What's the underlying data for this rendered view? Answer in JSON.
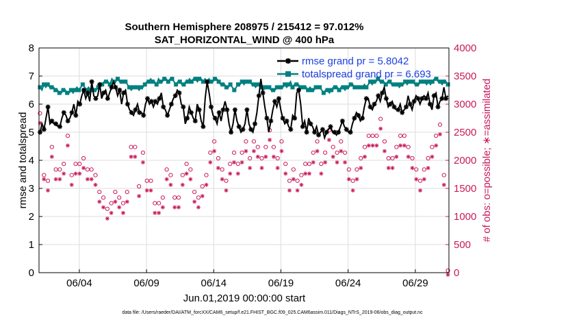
{
  "chart_data": {
    "type": "line",
    "title_line1": "Southern Hemisphere 208975 / 215412 = 97.012%",
    "title_line2": "SAT_HORIZONTAL_WIND @ 400 hPa",
    "xlabel": "Jun.01,2019 00:00:00 start",
    "ylabel_left": "rmse and totalspread",
    "ylabel_right": "# of obs: o=possible; ∗=assimilated",
    "xlim": [
      0,
      30.5
    ],
    "ylim_left": [
      0,
      8
    ],
    "ylim_right": [
      0,
      4000
    ],
    "x_ticks": [
      {
        "x": 3,
        "label": "06/04"
      },
      {
        "x": 8,
        "label": "06/09"
      },
      {
        "x": 13,
        "label": "06/14"
      },
      {
        "x": 18,
        "label": "06/19"
      },
      {
        "x": 23,
        "label": "06/24"
      },
      {
        "x": 28,
        "label": "06/29"
      }
    ],
    "y_ticks_left": [
      0,
      1,
      2,
      3,
      4,
      5,
      6,
      7,
      8
    ],
    "y_ticks_right": [
      0,
      500,
      1000,
      1500,
      2000,
      2500,
      3000,
      3500,
      4000
    ],
    "grid": true,
    "legend_position": "top-right",
    "colors": {
      "rmse": "#000000",
      "spread": "#008080",
      "obs": "#c8185a",
      "legend_text": "#1a3fe0"
    },
    "footer": "data file: /Users/raeder/DAI/ATM_forcXX/CAM6_setup/f.e21.FHIST_BGC.f09_025.CAM6assim.011/Diags_NTrS_2019-06/obs_diag_output.nc",
    "series": [
      {
        "name": "rmse grand pr = 5.8042",
        "axis": "left",
        "values": [
          5.0,
          5.3,
          5.1,
          5.5,
          5.9,
          5.3,
          5.4,
          5.3,
          5.3,
          5.2,
          5.2,
          5.5,
          5.7,
          5.6,
          5.4,
          5.5,
          5.7,
          6.0,
          5.6,
          6.1,
          6.0,
          6.3,
          6.5,
          6.2,
          6.4,
          6.1,
          6.8,
          6.3,
          6.2,
          6.3,
          6.7,
          6.2,
          6.4,
          6.5,
          6.2,
          6.4,
          6.6,
          6.8,
          6.6,
          6.3,
          6.5,
          6.0,
          6.4,
          6.5,
          6.0,
          5.8,
          5.7,
          5.6,
          5.8,
          6.0,
          5.7,
          5.7,
          5.6,
          6.0,
          6.2,
          6.0,
          6.1,
          5.9,
          6.1,
          6.0,
          6.2,
          6.4,
          5.9,
          5.8,
          5.6,
          5.8,
          6.0,
          6.2,
          6.3,
          6.5,
          6.4,
          6.0,
          5.9,
          5.3,
          5.5,
          5.9,
          5.7,
          5.5,
          5.4,
          6.0,
          5.8,
          5.4,
          5.2,
          6.2,
          6.8,
          6.4,
          5.9,
          5.6,
          5.5,
          5.3,
          5.7,
          5.4,
          5.8,
          6.1,
          5.8,
          5.3,
          5.0,
          5.3,
          5.8,
          5.4,
          5.2,
          5.0,
          5.1,
          5.3,
          5.8,
          5.3,
          5.1,
          5.0,
          5.3,
          5.7,
          6.3,
          6.9,
          6.4,
          5.9,
          5.5,
          5.0,
          5.4,
          5.8,
          6.1,
          5.9,
          6.2,
          5.8,
          5.5,
          5.3,
          5.4,
          5.2,
          5.1,
          5.6,
          5.5,
          6.4,
          6.5,
          6.0,
          5.2,
          5.4,
          5.0,
          5.5,
          5.3,
          5.2,
          5.0,
          5.2,
          4.9,
          5.0,
          5.1,
          4.8,
          5.0,
          5.1,
          5.2,
          5.0,
          5.0,
          4.9,
          5.0,
          5.2,
          5.4,
          5.2,
          5.1,
          5.0,
          5.0,
          5.3,
          5.5,
          5.7,
          5.6,
          5.4,
          5.5,
          5.9,
          6.2,
          6.2,
          5.9,
          5.8,
          6.0,
          6.1,
          6.3,
          6.1,
          6.4,
          6.6,
          6.2,
          5.9,
          6.0,
          6.1,
          5.9,
          5.8,
          5.8,
          6.0,
          5.7,
          5.8,
          5.9,
          6.3,
          6.0,
          5.8,
          6.1,
          6.3,
          6.2,
          6.0,
          6.2,
          6.3,
          6.2,
          6.4,
          6.0,
          5.8,
          6.3,
          6.4,
          5.9,
          6.1,
          6.2,
          6.6,
          6.2,
          6.3
        ]
      },
      {
        "name": "totalspread grand pr = 6.693",
        "axis": "left",
        "values": [
          6.6,
          6.5,
          6.7,
          6.6,
          6.7,
          6.6,
          6.6,
          6.6,
          6.5,
          6.5,
          6.4,
          6.4,
          6.5,
          6.5,
          6.4,
          6.4,
          6.5,
          6.4,
          6.5,
          6.6,
          6.5,
          6.6,
          6.7,
          6.6,
          6.5,
          6.6,
          6.5,
          6.6,
          6.5,
          6.5,
          6.6,
          6.6,
          6.7,
          6.8,
          6.8,
          6.8,
          6.7,
          6.9,
          6.8,
          6.8,
          6.9,
          6.8,
          6.8,
          6.8,
          6.8,
          6.7,
          6.6,
          6.5,
          6.6,
          6.6,
          6.6,
          6.5,
          6.6,
          6.6,
          6.7,
          6.8,
          6.8,
          6.9,
          6.8,
          6.8,
          6.7,
          6.9,
          6.8,
          6.8,
          6.9,
          6.9,
          6.8,
          6.9,
          6.9,
          6.8,
          6.7,
          6.8,
          6.8,
          6.7,
          6.7,
          6.8,
          6.8,
          6.9,
          6.8,
          6.9,
          6.9,
          6.8,
          6.9,
          6.9,
          6.8,
          6.9,
          6.8,
          6.9,
          6.8,
          6.8,
          6.9,
          6.9,
          6.8,
          6.7,
          6.7,
          6.7,
          6.6,
          6.6,
          6.7,
          6.6,
          6.5,
          6.6,
          6.7,
          6.7,
          6.8,
          6.7,
          6.8,
          6.8,
          6.8,
          6.7,
          6.7,
          6.6,
          6.7,
          6.7,
          6.6,
          6.5,
          6.6,
          6.6,
          6.6,
          6.5,
          6.5,
          6.5,
          6.6,
          6.6,
          6.6,
          6.6,
          6.7,
          6.6,
          6.7,
          6.8,
          6.6,
          6.7,
          6.7,
          6.7,
          6.6,
          6.6,
          6.6,
          6.6,
          6.5,
          6.6,
          6.5,
          6.5,
          6.6,
          6.6,
          6.6,
          6.5,
          6.4,
          6.5,
          6.5,
          6.4,
          6.5,
          6.6,
          6.6,
          6.6,
          6.5,
          6.6,
          6.6,
          6.5,
          6.6,
          6.6,
          6.7,
          6.7,
          6.6,
          6.6,
          6.6,
          6.6,
          6.6,
          6.7,
          6.6,
          6.7,
          6.8,
          6.7,
          6.8,
          6.8,
          6.9,
          6.8,
          6.8,
          6.8,
          6.7,
          6.8,
          6.8,
          6.7,
          6.7,
          6.7,
          6.7,
          6.6,
          6.7,
          6.7,
          6.8,
          6.7,
          6.8,
          6.8,
          6.8,
          6.7,
          6.7,
          6.7,
          6.8,
          6.8,
          6.8,
          6.7,
          6.8,
          6.7,
          6.8,
          6.9,
          6.9,
          6.8,
          6.8,
          6.7,
          6.8,
          6.8,
          6.7
        ]
      },
      {
        "name": "possible",
        "axis": "right",
        "marker": "circle",
        "values": [
          2800,
          2500,
          1700,
          1500,
          1600,
          1900,
          2200,
          2400,
          1800,
          1600,
          1800,
          2100,
          1900,
          2300,
          2400,
          1500,
          1700,
          1800,
          1900,
          1700,
          1900,
          1800,
          2000,
          1900,
          1800,
          1700,
          1800,
          1600,
          1700,
          1500,
          1400,
          1500,
          1300,
          1100,
          1100,
          1100,
          1200,
          1300,
          1400,
          1600,
          1300,
          1300,
          1200,
          1200,
          1400,
          1600,
          2200,
          2300,
          2200,
          1500,
          1500,
          1600,
          2100,
          2000,
          1600,
          1500,
          1600,
          1500,
          1200,
          1300,
          1200,
          1100,
          1300,
          1900,
          1800,
          1700,
          1700,
          1200,
          1300,
          1200,
          1300,
          1400,
          1700,
          1800,
          1900,
          1800,
          1800,
          1700,
          1400,
          1500,
          1300,
          1400,
          1500,
          1800,
          1700,
          1900,
          2100,
          2200,
          2300,
          2100,
          2000,
          1900,
          1800,
          1700,
          1600,
          1700,
          1900,
          2000,
          2100,
          2200,
          1900,
          2000,
          2100,
          2200,
          2300,
          2100,
          2000,
          2200,
          2300,
          2100,
          2200,
          2100,
          2000,
          1900,
          2200,
          2300,
          2500,
          2400,
          2200,
          2100,
          2000,
          2100,
          2300,
          2200,
          1900,
          1800,
          1600,
          1700,
          1800,
          1700,
          1600,
          1500,
          1700,
          1800,
          1900,
          1800,
          1900,
          2000,
          2100,
          2200,
          2300,
          1800,
          1900,
          2000,
          2100,
          2400,
          2500,
          2300,
          2200,
          2100,
          2100,
          2200,
          2300,
          2200,
          2100,
          1900,
          1800,
          1700,
          1600,
          1700,
          1800,
          1900,
          2000,
          2100,
          2200,
          2300,
          2400,
          2300,
          2400,
          2500,
          2400,
          2600,
          2700,
          2500,
          2300,
          2100,
          2000,
          1900,
          2000,
          2100,
          2200,
          2300,
          2400,
          2500,
          2400,
          2300,
          2200,
          2100,
          2000,
          1900,
          1800,
          1700,
          1600,
          1700,
          1800,
          1900,
          2000,
          2100,
          2200,
          2300,
          2400,
          2500,
          2600,
          2700,
          1700,
          1600,
          0
        ]
      },
      {
        "name": "assimilated",
        "axis": "right",
        "marker": "asterisk",
        "values": [
          2700,
          2400,
          1700,
          1400,
          1500,
          1800,
          2100,
          2300,
          1700,
          1500,
          1700,
          2000,
          1800,
          2200,
          2300,
          1400,
          1600,
          1700,
          1800,
          1600,
          1800,
          1700,
          1900,
          1800,
          1700,
          1600,
          1700,
          1500,
          1600,
          1400,
          1300,
          1400,
          1200,
          1000,
          1000,
          1000,
          1100,
          1200,
          1300,
          1500,
          1200,
          1200,
          1100,
          1100,
          1300,
          1500,
          2100,
          2200,
          2100,
          1400,
          1400,
          1500,
          2000,
          1900,
          1500,
          1400,
          1500,
          1400,
          1100,
          1200,
          1100,
          1000,
          1200,
          1800,
          1700,
          1600,
          1600,
          1100,
          1200,
          1100,
          1200,
          1300,
          1600,
          1700,
          1800,
          1700,
          1700,
          1600,
          1300,
          1400,
          1200,
          1300,
          1400,
          1700,
          1600,
          1800,
          2000,
          2100,
          2200,
          2000,
          1900,
          1800,
          1700,
          1600,
          1500,
          1600,
          1800,
          1900,
          2000,
          2100,
          1800,
          1900,
          2000,
          2100,
          2200,
          2000,
          1900,
          2100,
          2200,
          2000,
          2100,
          2000,
          1900,
          1800,
          2100,
          2200,
          2400,
          2300,
          2100,
          2000,
          1900,
          2000,
          2200,
          2100,
          1800,
          1700,
          1500,
          1600,
          1700,
          1600,
          1500,
          1400,
          1600,
          1700,
          1800,
          1700,
          1800,
          1900,
          2000,
          2100,
          2200,
          1700,
          1800,
          1900,
          2000,
          2300,
          2400,
          2200,
          2100,
          2000,
          2000,
          2100,
          2200,
          2100,
          2000,
          1800,
          1700,
          1600,
          1500,
          1600,
          1700,
          1800,
          1900,
          2000,
          2100,
          2200,
          2300,
          2200,
          2300,
          2400,
          2300,
          2500,
          2600,
          2400,
          2200,
          2000,
          1900,
          1800,
          1900,
          2000,
          2100,
          2200,
          2300,
          2400,
          2300,
          2200,
          2100,
          2000,
          1900,
          1800,
          1700,
          1600,
          1500,
          1600,
          1700,
          1800,
          1900,
          2000,
          2100,
          2200,
          2300,
          2400,
          2500,
          2600,
          1600,
          1500,
          0
        ]
      }
    ]
  }
}
